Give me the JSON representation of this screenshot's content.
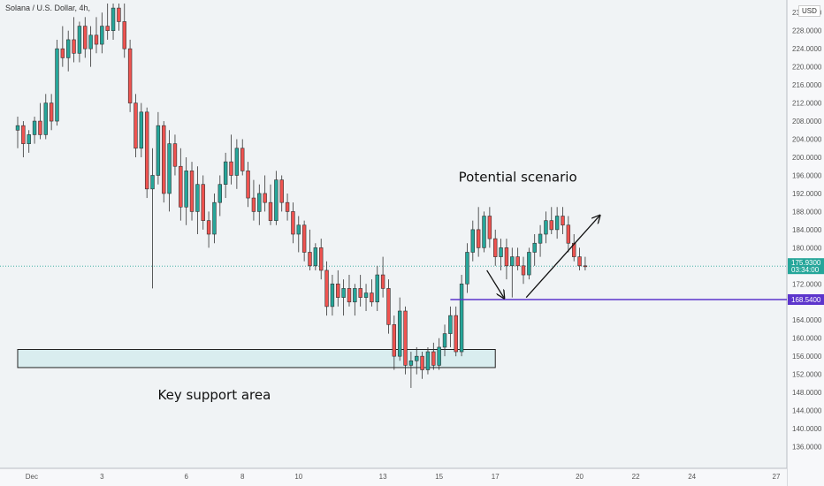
{
  "header": {
    "title": "Solana / U.S. Dollar, 4h, ",
    "currency": "USD"
  },
  "chart_data": {
    "type": "candlestick",
    "ylim": [
      132,
      234
    ],
    "xlim": [
      0,
      27
    ],
    "y_ticks": [
      "136.0000",
      "140.0000",
      "144.0000",
      "148.0000",
      "152.0000",
      "156.0000",
      "160.0000",
      "164.0000",
      "168.0000",
      "172.0000",
      "176.0000",
      "180.0000",
      "184.0000",
      "188.0000",
      "192.0000",
      "196.0000",
      "200.0000",
      "204.0000",
      "208.0000",
      "212.0000",
      "216.0000",
      "220.0000",
      "224.0000",
      "228.0000",
      "232.0000"
    ],
    "x_ticks": [
      {
        "label": "Dec",
        "x": 0.5
      },
      {
        "label": "3",
        "x": 3
      },
      {
        "label": "6",
        "x": 6
      },
      {
        "label": "8",
        "x": 8
      },
      {
        "label": "10",
        "x": 10
      },
      {
        "label": "13",
        "x": 13
      },
      {
        "label": "15",
        "x": 15
      },
      {
        "label": "17",
        "x": 17
      },
      {
        "label": "20",
        "x": 20
      },
      {
        "label": "22",
        "x": 22
      },
      {
        "label": "24",
        "x": 24
      },
      {
        "label": "27",
        "x": 27
      }
    ],
    "candles": [
      {
        "x": 0.0,
        "o": 206,
        "h": 209,
        "l": 202,
        "c": 207
      },
      {
        "x": 0.2,
        "o": 207,
        "h": 208,
        "l": 200,
        "c": 203
      },
      {
        "x": 0.4,
        "o": 203,
        "h": 206,
        "l": 201,
        "c": 205
      },
      {
        "x": 0.6,
        "o": 205,
        "h": 209,
        "l": 203,
        "c": 208
      },
      {
        "x": 0.8,
        "o": 208,
        "h": 212,
        "l": 204,
        "c": 205
      },
      {
        "x": 1.0,
        "o": 205,
        "h": 214,
        "l": 204,
        "c": 212
      },
      {
        "x": 1.2,
        "o": 212,
        "h": 214,
        "l": 206,
        "c": 208
      },
      {
        "x": 1.4,
        "o": 208,
        "h": 226,
        "l": 207,
        "c": 224
      },
      {
        "x": 1.6,
        "o": 224,
        "h": 229,
        "l": 220,
        "c": 222
      },
      {
        "x": 1.8,
        "o": 222,
        "h": 228,
        "l": 219,
        "c": 226
      },
      {
        "x": 2.0,
        "o": 226,
        "h": 231,
        "l": 221,
        "c": 223
      },
      {
        "x": 2.2,
        "o": 223,
        "h": 230,
        "l": 221,
        "c": 229
      },
      {
        "x": 2.4,
        "o": 229,
        "h": 231,
        "l": 222,
        "c": 224
      },
      {
        "x": 2.6,
        "o": 224,
        "h": 229,
        "l": 220,
        "c": 227
      },
      {
        "x": 2.8,
        "o": 227,
        "h": 231,
        "l": 223,
        "c": 225
      },
      {
        "x": 3.0,
        "o": 225,
        "h": 232,
        "l": 223,
        "c": 229
      },
      {
        "x": 3.2,
        "o": 229,
        "h": 234,
        "l": 226,
        "c": 228
      },
      {
        "x": 3.4,
        "o": 228,
        "h": 234,
        "l": 226,
        "c": 233
      },
      {
        "x": 3.6,
        "o": 233,
        "h": 234,
        "l": 228,
        "c": 230
      },
      {
        "x": 3.8,
        "o": 230,
        "h": 234,
        "l": 222,
        "c": 224
      },
      {
        "x": 4.0,
        "o": 224,
        "h": 226,
        "l": 210,
        "c": 212
      },
      {
        "x": 4.2,
        "o": 212,
        "h": 214,
        "l": 200,
        "c": 202
      },
      {
        "x": 4.4,
        "o": 202,
        "h": 212,
        "l": 200,
        "c": 210
      },
      {
        "x": 4.6,
        "o": 210,
        "h": 211,
        "l": 191,
        "c": 193
      },
      {
        "x": 4.8,
        "o": 193,
        "h": 202,
        "l": 171,
        "c": 196
      },
      {
        "x": 5.0,
        "o": 196,
        "h": 210,
        "l": 194,
        "c": 207
      },
      {
        "x": 5.2,
        "o": 207,
        "h": 208,
        "l": 190,
        "c": 192
      },
      {
        "x": 5.4,
        "o": 192,
        "h": 206,
        "l": 188,
        "c": 203
      },
      {
        "x": 5.6,
        "o": 203,
        "h": 205,
        "l": 196,
        "c": 198
      },
      {
        "x": 5.8,
        "o": 198,
        "h": 202,
        "l": 186,
        "c": 189
      },
      {
        "x": 6.0,
        "o": 189,
        "h": 200,
        "l": 185,
        "c": 197
      },
      {
        "x": 6.2,
        "o": 197,
        "h": 199,
        "l": 186,
        "c": 188
      },
      {
        "x": 6.4,
        "o": 188,
        "h": 198,
        "l": 183,
        "c": 194
      },
      {
        "x": 6.6,
        "o": 194,
        "h": 196,
        "l": 184,
        "c": 186
      },
      {
        "x": 6.8,
        "o": 186,
        "h": 188,
        "l": 180,
        "c": 183
      },
      {
        "x": 7.0,
        "o": 183,
        "h": 192,
        "l": 181,
        "c": 190
      },
      {
        "x": 7.2,
        "o": 190,
        "h": 196,
        "l": 187,
        "c": 194
      },
      {
        "x": 7.4,
        "o": 194,
        "h": 201,
        "l": 191,
        "c": 199
      },
      {
        "x": 7.6,
        "o": 199,
        "h": 205,
        "l": 194,
        "c": 196
      },
      {
        "x": 7.8,
        "o": 196,
        "h": 204,
        "l": 193,
        "c": 202
      },
      {
        "x": 8.0,
        "o": 202,
        "h": 204,
        "l": 196,
        "c": 197
      },
      {
        "x": 8.2,
        "o": 197,
        "h": 199,
        "l": 189,
        "c": 191
      },
      {
        "x": 8.4,
        "o": 191,
        "h": 195,
        "l": 186,
        "c": 188
      },
      {
        "x": 8.6,
        "o": 188,
        "h": 194,
        "l": 185,
        "c": 192
      },
      {
        "x": 8.8,
        "o": 192,
        "h": 196,
        "l": 188,
        "c": 190
      },
      {
        "x": 9.0,
        "o": 190,
        "h": 194,
        "l": 185,
        "c": 186
      },
      {
        "x": 9.2,
        "o": 186,
        "h": 197,
        "l": 185,
        "c": 195
      },
      {
        "x": 9.4,
        "o": 195,
        "h": 196,
        "l": 188,
        "c": 190
      },
      {
        "x": 9.6,
        "o": 190,
        "h": 192,
        "l": 186,
        "c": 188
      },
      {
        "x": 9.8,
        "o": 188,
        "h": 190,
        "l": 181,
        "c": 183
      },
      {
        "x": 10.0,
        "o": 183,
        "h": 187,
        "l": 179,
        "c": 185
      },
      {
        "x": 10.2,
        "o": 185,
        "h": 186,
        "l": 177,
        "c": 179
      },
      {
        "x": 10.4,
        "o": 179,
        "h": 184,
        "l": 175,
        "c": 176
      },
      {
        "x": 10.6,
        "o": 176,
        "h": 181,
        "l": 175,
        "c": 180
      },
      {
        "x": 10.8,
        "o": 180,
        "h": 182,
        "l": 173,
        "c": 175
      },
      {
        "x": 11.0,
        "o": 175,
        "h": 177,
        "l": 165,
        "c": 167
      },
      {
        "x": 11.2,
        "o": 167,
        "h": 174,
        "l": 165,
        "c": 172
      },
      {
        "x": 11.4,
        "o": 172,
        "h": 175,
        "l": 167,
        "c": 169
      },
      {
        "x": 11.6,
        "o": 169,
        "h": 173,
        "l": 165,
        "c": 171
      },
      {
        "x": 11.8,
        "o": 171,
        "h": 174,
        "l": 167,
        "c": 168
      },
      {
        "x": 12.0,
        "o": 168,
        "h": 172,
        "l": 165,
        "c": 171
      },
      {
        "x": 12.2,
        "o": 171,
        "h": 174,
        "l": 167,
        "c": 169
      },
      {
        "x": 12.4,
        "o": 169,
        "h": 172,
        "l": 166,
        "c": 170
      },
      {
        "x": 12.6,
        "o": 170,
        "h": 173,
        "l": 167,
        "c": 168
      },
      {
        "x": 12.8,
        "o": 168,
        "h": 176,
        "l": 166,
        "c": 174
      },
      {
        "x": 13.0,
        "o": 174,
        "h": 178,
        "l": 169,
        "c": 171
      },
      {
        "x": 13.2,
        "o": 171,
        "h": 173,
        "l": 161,
        "c": 163
      },
      {
        "x": 13.4,
        "o": 163,
        "h": 165,
        "l": 153,
        "c": 156
      },
      {
        "x": 13.6,
        "o": 156,
        "h": 169,
        "l": 155,
        "c": 166
      },
      {
        "x": 13.8,
        "o": 166,
        "h": 167,
        "l": 152,
        "c": 154
      },
      {
        "x": 14.0,
        "o": 154,
        "h": 157,
        "l": 149,
        "c": 155
      },
      {
        "x": 14.2,
        "o": 155,
        "h": 158,
        "l": 152,
        "c": 156
      },
      {
        "x": 14.4,
        "o": 156,
        "h": 157,
        "l": 151,
        "c": 153
      },
      {
        "x": 14.6,
        "o": 153,
        "h": 158,
        "l": 152,
        "c": 157
      },
      {
        "x": 14.8,
        "o": 157,
        "h": 159,
        "l": 153,
        "c": 154
      },
      {
        "x": 15.0,
        "o": 154,
        "h": 160,
        "l": 153,
        "c": 158
      },
      {
        "x": 15.2,
        "o": 158,
        "h": 163,
        "l": 156,
        "c": 161
      },
      {
        "x": 15.4,
        "o": 161,
        "h": 167,
        "l": 158,
        "c": 165
      },
      {
        "x": 15.6,
        "o": 165,
        "h": 167,
        "l": 156,
        "c": 157
      },
      {
        "x": 15.8,
        "o": 157,
        "h": 174,
        "l": 156,
        "c": 172
      },
      {
        "x": 16.0,
        "o": 172,
        "h": 181,
        "l": 170,
        "c": 179
      },
      {
        "x": 16.2,
        "o": 179,
        "h": 186,
        "l": 177,
        "c": 184
      },
      {
        "x": 16.4,
        "o": 184,
        "h": 189,
        "l": 178,
        "c": 180
      },
      {
        "x": 16.6,
        "o": 180,
        "h": 188,
        "l": 179,
        "c": 187
      },
      {
        "x": 16.8,
        "o": 187,
        "h": 189,
        "l": 180,
        "c": 182
      },
      {
        "x": 17.0,
        "o": 182,
        "h": 184,
        "l": 176,
        "c": 178
      },
      {
        "x": 17.2,
        "o": 178,
        "h": 182,
        "l": 175,
        "c": 180
      },
      {
        "x": 17.4,
        "o": 180,
        "h": 182,
        "l": 173,
        "c": 176
      },
      {
        "x": 17.6,
        "o": 176,
        "h": 180,
        "l": 169,
        "c": 178
      },
      {
        "x": 17.8,
        "o": 178,
        "h": 180,
        "l": 175,
        "c": 176
      },
      {
        "x": 18.0,
        "o": 176,
        "h": 178,
        "l": 172,
        "c": 174
      },
      {
        "x": 18.2,
        "o": 174,
        "h": 180,
        "l": 173,
        "c": 179
      },
      {
        "x": 18.4,
        "o": 179,
        "h": 183,
        "l": 176,
        "c": 181
      },
      {
        "x": 18.6,
        "o": 181,
        "h": 185,
        "l": 178,
        "c": 183
      },
      {
        "x": 18.8,
        "o": 183,
        "h": 188,
        "l": 181,
        "c": 186
      },
      {
        "x": 19.0,
        "o": 186,
        "h": 189,
        "l": 183,
        "c": 184
      },
      {
        "x": 19.2,
        "o": 184,
        "h": 189,
        "l": 182,
        "c": 187
      },
      {
        "x": 19.4,
        "o": 187,
        "h": 189,
        "l": 183,
        "c": 185
      },
      {
        "x": 19.6,
        "o": 185,
        "h": 187,
        "l": 179,
        "c": 181
      },
      {
        "x": 19.8,
        "o": 181,
        "h": 183,
        "l": 177,
        "c": 178
      },
      {
        "x": 20.0,
        "o": 178,
        "h": 180,
        "l": 175,
        "c": 176
      },
      {
        "x": 20.2,
        "o": 176,
        "h": 178,
        "l": 175,
        "c": 175.93
      }
    ],
    "support_zone": {
      "x_start": 0,
      "x_end": 17.0,
      "y_low": 153.5,
      "y_high": 157.5
    },
    "horizontal_line": {
      "y": 168.54,
      "x_start": 15.4,
      "color": "#5c35cc"
    },
    "arrows": [
      {
        "from": [
          16.7,
          175
        ],
        "to": [
          17.3,
          169
        ]
      },
      {
        "from": [
          18.1,
          169
        ],
        "to": [
          20.7,
          187
        ]
      }
    ],
    "annotations": [
      {
        "text": "Potential scenario",
        "x": 17.8,
        "y": 194.6
      },
      {
        "text": "Key support area",
        "x": 7.0,
        "y": 146.5
      }
    ],
    "last_price": {
      "label": "175.9300",
      "countdown": "03:34:00",
      "value": 175.93,
      "color": "#26a69a"
    },
    "level_label": {
      "label": "168.5400",
      "value": 168.54,
      "color": "#5c35cc"
    },
    "up_color": "#26a69a",
    "down_color": "#ef5350"
  }
}
